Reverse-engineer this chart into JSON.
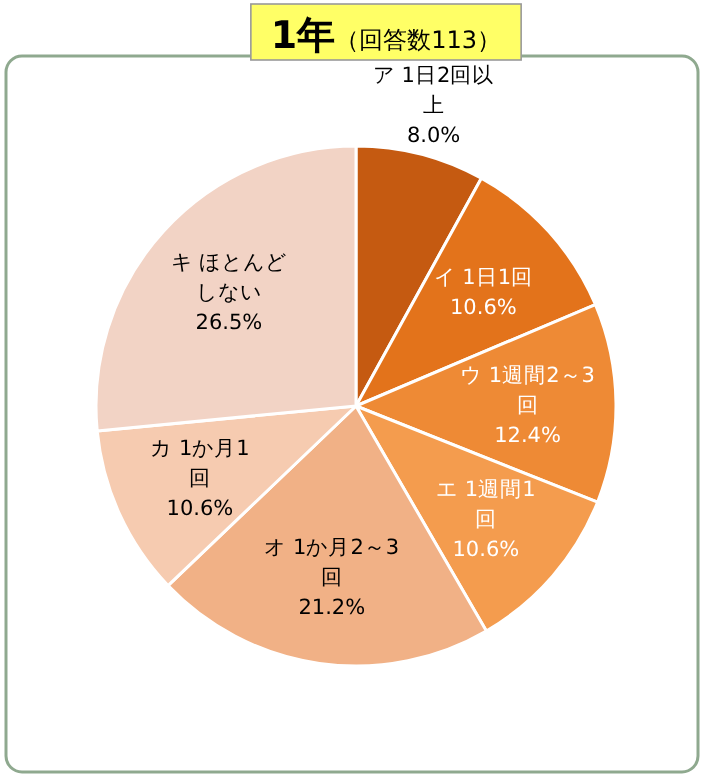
{
  "chart_data": {
    "type": "pie",
    "title": "1年",
    "subtitle": "（回答数113）",
    "categories": [
      "ア 1日2回以上",
      "イ 1日1回",
      "ウ 1週間2～3回",
      "エ 1週間1回",
      "オ 1か月2～3回",
      "カ 1か月1回",
      "キ ほとんどしない"
    ],
    "values": [
      8.0,
      10.6,
      12.4,
      10.6,
      21.2,
      10.6,
      26.5
    ],
    "colors": [
      "#c55a11",
      "#e3731b",
      "#ee8a35",
      "#f49c4e",
      "#f1b186",
      "#f6cbb0",
      "#f2d3c5"
    ],
    "value_labels": [
      "8.0%",
      "10.6%",
      "12.4%",
      "10.6%",
      "21.2%",
      "10.6%",
      "26.5%"
    ]
  }
}
